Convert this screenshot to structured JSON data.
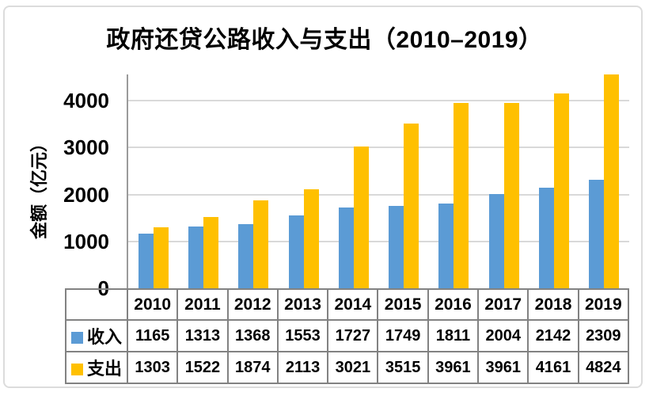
{
  "chart_data": {
    "type": "bar",
    "title": "政府还贷公路收入与支出（2010–2019）",
    "ylabel": "金额（亿元）",
    "xlabel": "",
    "categories": [
      "2010",
      "2011",
      "2012",
      "2013",
      "2014",
      "2015",
      "2016",
      "2017",
      "2018",
      "2019"
    ],
    "series": [
      {
        "name": "收入",
        "color": "#5B9BD5",
        "values": [
          1165,
          1313,
          1368,
          1553,
          1727,
          1749,
          1811,
          2004,
          2142,
          2309
        ]
      },
      {
        "name": "支出",
        "color": "#FFC000",
        "values": [
          1303,
          1522,
          1874,
          2113,
          3021,
          3515,
          3961,
          3961,
          4161,
          4824
        ]
      }
    ],
    "yticks": [
      0,
      1000,
      2000,
      3000,
      4000
    ],
    "ylim": [
      0,
      4560
    ],
    "grid": true,
    "legend_position": "table-row-headers"
  },
  "colors": {
    "income_bar": "#5B9BD5",
    "expense_bar": "#FFC000",
    "gridline": "#D9D9D9",
    "axis_line": "#9B9B9B",
    "table_border": "#828282",
    "card_border": "#DCDCDC",
    "text": "#000000",
    "background": "#FFFFFF"
  }
}
